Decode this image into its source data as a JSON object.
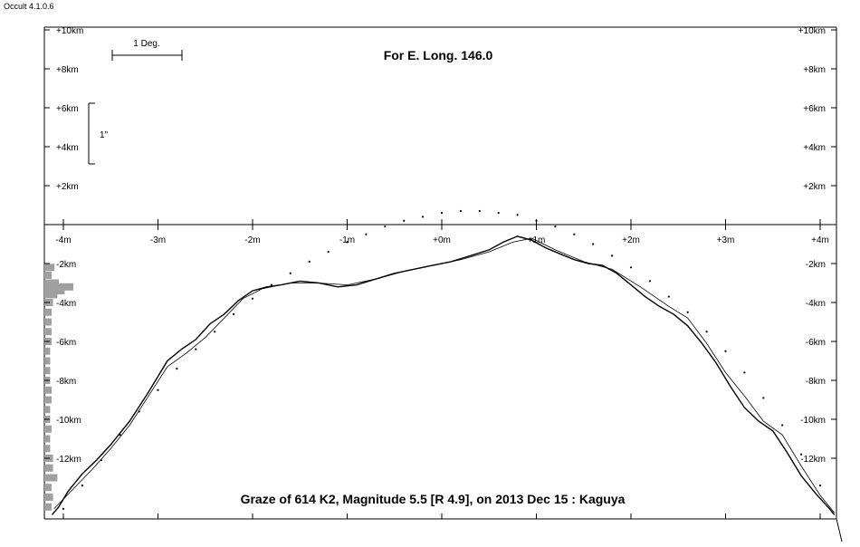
{
  "app_title": "Occult 4.1.0.6",
  "chart_data": {
    "type": "line",
    "title": "Graze of  614 K2,  Magnitude 5.5 [R 4.9],  on 2013 Dec 15  :  Kaguya",
    "subtitle": "For E. Long. 146.0",
    "scale_bar_x_label": "1 Deg.",
    "scale_bar_y_label": "1\"",
    "x_axis": {
      "ticks": [
        "-4m",
        "-3m",
        "-2m",
        "-1m",
        "+0m",
        "+1m",
        "+2m",
        "+3m",
        "+4m"
      ],
      "range": [
        -4.2,
        4.2
      ]
    },
    "y_axis_upper": {
      "ticks": [
        "+10km",
        "+8km",
        "+6km",
        "+4km",
        "+2km"
      ],
      "range": [
        0,
        10
      ]
    },
    "y_axis_lower": {
      "ticks": [
        "-2km",
        "-4km",
        "-6km",
        "-8km",
        "-10km",
        "-12km"
      ],
      "range": [
        -15,
        0
      ]
    },
    "series": [
      {
        "style": "profile",
        "x": [
          -4.12,
          -4.05,
          -3.95,
          -3.8,
          -3.65,
          -3.5,
          -3.3,
          -3.1,
          -2.9,
          -2.75,
          -2.6,
          -2.45,
          -2.3,
          -2.15,
          -2.0,
          -1.85,
          -1.7,
          -1.5,
          -1.3,
          -1.1,
          -0.9,
          -0.7,
          -0.5,
          -0.3,
          -0.1,
          0.1,
          0.3,
          0.5,
          0.65,
          0.8,
          0.95,
          1.1,
          1.25,
          1.4,
          1.55,
          1.7,
          1.85,
          2.0,
          2.15,
          2.3,
          2.45,
          2.6,
          2.75,
          2.9,
          3.05,
          3.2,
          3.35,
          3.5,
          3.65,
          3.8,
          3.95,
          4.1,
          4.15
        ],
        "y": [
          -14.9,
          -14.5,
          -13.7,
          -12.8,
          -12.1,
          -11.3,
          -10.1,
          -8.6,
          -7.0,
          -6.4,
          -5.9,
          -5.1,
          -4.6,
          -3.9,
          -3.4,
          -3.2,
          -3.1,
          -2.9,
          -3.0,
          -3.2,
          -3.1,
          -2.8,
          -2.5,
          -2.3,
          -2.1,
          -1.9,
          -1.6,
          -1.3,
          -0.9,
          -0.6,
          -0.8,
          -1.2,
          -1.5,
          -1.8,
          -2.0,
          -2.1,
          -2.5,
          -3.1,
          -3.7,
          -4.2,
          -4.6,
          -5.2,
          -6.1,
          -7.1,
          -8.3,
          -9.4,
          -10.1,
          -10.6,
          -11.7,
          -12.9,
          -13.8,
          -14.6,
          -14.9
        ]
      },
      {
        "style": "smoothed",
        "x": [
          -4.1,
          -3.9,
          -3.7,
          -3.5,
          -3.3,
          -3.1,
          -2.9,
          -2.7,
          -2.5,
          -2.3,
          -2.1,
          -1.9,
          -1.6,
          -1.3,
          -1.0,
          -0.7,
          -0.4,
          -0.1,
          0.2,
          0.5,
          0.75,
          0.95,
          1.2,
          1.5,
          1.8,
          2.1,
          2.4,
          2.6,
          2.8,
          3.0,
          3.2,
          3.4,
          3.6,
          3.8,
          4.0,
          4.15
        ],
        "y": [
          -14.6,
          -13.6,
          -12.6,
          -11.5,
          -10.3,
          -8.8,
          -7.3,
          -6.6,
          -5.8,
          -4.8,
          -3.8,
          -3.3,
          -3.0,
          -3.0,
          -3.1,
          -2.8,
          -2.4,
          -2.1,
          -1.8,
          -1.4,
          -0.9,
          -0.7,
          -1.3,
          -1.9,
          -2.3,
          -3.2,
          -4.2,
          -4.8,
          -6.1,
          -7.6,
          -8.8,
          -10.1,
          -10.8,
          -12.4,
          -13.9,
          -14.8
        ]
      },
      {
        "style": "limb-dots",
        "x": [
          -4.0,
          -3.8,
          -3.6,
          -3.4,
          -3.2,
          -3.0,
          -2.8,
          -2.6,
          -2.4,
          -2.2,
          -2.0,
          -1.8,
          -1.6,
          -1.4,
          -1.2,
          -1.0,
          -0.8,
          -0.6,
          -0.4,
          -0.2,
          0.0,
          0.2,
          0.4,
          0.6,
          0.8,
          1.0,
          1.2,
          1.4,
          1.6,
          1.8,
          2.0,
          2.2,
          2.4,
          2.6,
          2.8,
          3.0,
          3.2,
          3.4,
          3.6,
          3.8,
          4.0
        ],
        "y": [
          -14.6,
          -13.4,
          -12.1,
          -10.8,
          -9.6,
          -8.5,
          -7.4,
          -6.4,
          -5.5,
          -4.6,
          -3.8,
          -3.1,
          -2.5,
          -1.9,
          -1.4,
          -0.9,
          -0.5,
          -0.1,
          0.2,
          0.4,
          0.6,
          0.7,
          0.7,
          0.6,
          0.5,
          0.2,
          -0.1,
          -0.5,
          -1.0,
          -1.6,
          -2.2,
          -2.9,
          -3.7,
          -4.5,
          -5.5,
          -6.5,
          -7.6,
          -8.9,
          -10.3,
          -11.8,
          -13.4
        ]
      }
    ],
    "histogram": {
      "y": [
        -2.2,
        -2.6,
        -3.0,
        -3.2,
        -3.4,
        -3.6,
        -4.0,
        -4.5,
        -5.0,
        -5.5,
        -6.0,
        -6.5,
        -7.0,
        -7.5,
        -8.0,
        -8.5,
        -9.0,
        -9.5,
        -10.0,
        -10.5,
        -11.0,
        -11.5,
        -12.0,
        -12.5,
        -13.0,
        -13.5,
        -14.0,
        -14.5
      ],
      "values": [
        0.35,
        0.25,
        0.5,
        1.0,
        0.7,
        0.45,
        0.3,
        0.25,
        0.25,
        0.25,
        0.25,
        0.2,
        0.2,
        0.2,
        0.2,
        0.25,
        0.25,
        0.2,
        0.2,
        0.25,
        0.2,
        0.2,
        0.3,
        0.3,
        0.45,
        0.25,
        0.3,
        0.25
      ]
    }
  }
}
